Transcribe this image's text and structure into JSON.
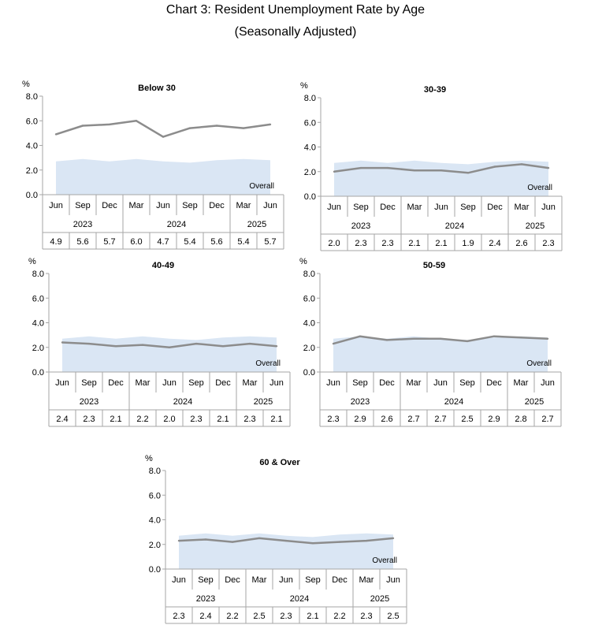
{
  "title": "Chart 3: Resident Unemployment Rate by Age",
  "subtitle": "(Seasonally Adjusted)",
  "unit": "%",
  "overall_label": "Overall",
  "months": [
    "Jun",
    "Sep",
    "Dec",
    "Mar",
    "Jun",
    "Sep",
    "Dec",
    "Mar",
    "Jun"
  ],
  "years": [
    {
      "label": "2023",
      "span": 3
    },
    {
      "label": "2024",
      "span": 4
    },
    {
      "label": "2025",
      "span": 2
    }
  ],
  "y_ticks": [
    "0.0",
    "2.0",
    "4.0",
    "6.0",
    "8.0"
  ],
  "colors": {
    "line": "#8c8c8c",
    "area": "#dae6f4",
    "grid": "#a6a6a6"
  },
  "chart_data": [
    {
      "type": "line",
      "title": "Below 30",
      "categories": [
        "Jun 2023",
        "Sep 2023",
        "Dec 2023",
        "Mar 2024",
        "Jun 2024",
        "Sep 2024",
        "Dec 2024",
        "Mar 2025",
        "Jun 2025"
      ],
      "values": [
        4.9,
        5.6,
        5.7,
        6.0,
        4.7,
        5.4,
        5.6,
        5.4,
        5.7
      ],
      "table_values": [
        "4.9",
        "5.6",
        "5.7",
        "6.0",
        "4.7",
        "5.4",
        "5.6",
        "5.4",
        "5.7"
      ],
      "overall": [
        2.7,
        2.9,
        2.7,
        2.9,
        2.7,
        2.6,
        2.8,
        2.9,
        2.8
      ],
      "ylim": [
        0,
        8
      ],
      "ylabel": "%"
    },
    {
      "type": "line",
      "title": "30-39",
      "categories": [
        "Jun 2023",
        "Sep 2023",
        "Dec 2023",
        "Mar 2024",
        "Jun 2024",
        "Sep 2024",
        "Dec 2024",
        "Mar 2025",
        "Jun 2025"
      ],
      "values": [
        2.0,
        2.3,
        2.3,
        2.1,
        2.1,
        1.9,
        2.4,
        2.6,
        2.3
      ],
      "table_values": [
        "2.0",
        "2.3",
        "2.3",
        "2.1",
        "2.1",
        "1.9",
        "2.4",
        "2.6",
        "2.3"
      ],
      "overall": [
        2.7,
        2.9,
        2.7,
        2.9,
        2.7,
        2.6,
        2.8,
        2.9,
        2.8
      ],
      "ylim": [
        0,
        8
      ],
      "ylabel": "%"
    },
    {
      "type": "line",
      "title": "40-49",
      "categories": [
        "Jun 2023",
        "Sep 2023",
        "Dec 2023",
        "Mar 2024",
        "Jun 2024",
        "Sep 2024",
        "Dec 2024",
        "Mar 2025",
        "Jun 2025"
      ],
      "values": [
        2.4,
        2.3,
        2.1,
        2.2,
        2.0,
        2.3,
        2.1,
        2.3,
        2.1
      ],
      "table_values": [
        "2.4",
        "2.3",
        "2.1",
        "2.2",
        "2.0",
        "2.3",
        "2.1",
        "2.3",
        "2.1"
      ],
      "overall": [
        2.7,
        2.9,
        2.7,
        2.9,
        2.7,
        2.6,
        2.8,
        2.9,
        2.8
      ],
      "ylim": [
        0,
        8
      ],
      "ylabel": "%"
    },
    {
      "type": "line",
      "title": "50-59",
      "categories": [
        "Jun 2023",
        "Sep 2023",
        "Dec 2023",
        "Mar 2024",
        "Jun 2024",
        "Sep 2024",
        "Dec 2024",
        "Mar 2025",
        "Jun 2025"
      ],
      "values": [
        2.3,
        2.9,
        2.6,
        2.7,
        2.7,
        2.5,
        2.9,
        2.8,
        2.7
      ],
      "table_values": [
        "2.3",
        "2.9",
        "2.6",
        "2.7",
        "2.7",
        "2.5",
        "2.9",
        "2.8",
        "2.7"
      ],
      "overall": [
        2.7,
        2.9,
        2.7,
        2.9,
        2.7,
        2.6,
        2.8,
        2.9,
        2.8
      ],
      "ylim": [
        0,
        8
      ],
      "ylabel": "%"
    },
    {
      "type": "line",
      "title": "60 & Over",
      "categories": [
        "Jun 2023",
        "Sep 2023",
        "Dec 2023",
        "Mar 2024",
        "Jun 2024",
        "Sep 2024",
        "Dec 2024",
        "Mar 2025",
        "Jun 2025"
      ],
      "values": [
        2.3,
        2.4,
        2.2,
        2.5,
        2.3,
        2.1,
        2.2,
        2.3,
        2.5
      ],
      "table_values": [
        "2.3",
        "2.4",
        "2.2",
        "2.5",
        "2.3",
        "2.1",
        "2.2",
        "2.3",
        "2.5"
      ],
      "overall": [
        2.7,
        2.9,
        2.7,
        2.9,
        2.7,
        2.6,
        2.8,
        2.9,
        2.8
      ],
      "ylim": [
        0,
        8
      ],
      "ylabel": "%"
    }
  ]
}
